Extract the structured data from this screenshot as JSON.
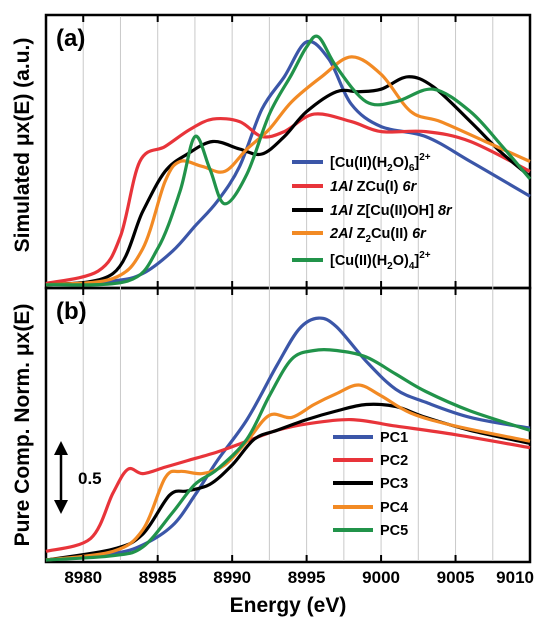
{
  "chart_data": [
    {
      "panel": "(a)",
      "type": "line",
      "ylabel": "Simulated μx(E) (a.u.)",
      "xlim": [
        8977.5,
        9010
      ],
      "ylim": [
        0,
        1.08
      ],
      "grid": "vertical",
      "legend_position": "right",
      "series": [
        {
          "name": "[Cu(II)(H2O)6]2+",
          "color": "#3b56a8",
          "x": [
            8977.5,
            8982,
            8984,
            8986,
            8987.5,
            8989,
            8990.5,
            8992,
            8993.5,
            8995,
            8996.5,
            8998,
            9000,
            9003,
            9006,
            9010
          ],
          "y": [
            0.005,
            0.02,
            0.05,
            0.14,
            0.24,
            0.34,
            0.48,
            0.71,
            0.84,
            0.98,
            0.91,
            0.73,
            0.64,
            0.6,
            0.5,
            0.36
          ]
        },
        {
          "name": "1Al ZCu(I) 6r",
          "color": "#e8343a",
          "x": [
            8977.5,
            8981,
            8982.5,
            8983.8,
            8985.5,
            8987.2,
            8988.7,
            8990.5,
            8992,
            8993.5,
            8995.5,
            8998,
            9000,
            9003,
            9006,
            9010
          ],
          "y": [
            0.01,
            0.06,
            0.2,
            0.5,
            0.56,
            0.63,
            0.67,
            0.66,
            0.6,
            0.62,
            0.69,
            0.66,
            0.62,
            0.62,
            0.58,
            0.46
          ]
        },
        {
          "name": "1Al Z[Cu(II)OH] 8r",
          "color": "#000000",
          "x": [
            8977.5,
            8982,
            8984,
            8985.5,
            8987,
            8988.7,
            8990.5,
            8992,
            8993.5,
            8995,
            8997,
            8998.5,
            9000,
            9001.8,
            9003.5,
            9006,
            9008,
            9010
          ],
          "y": [
            0.005,
            0.05,
            0.3,
            0.46,
            0.53,
            0.58,
            0.55,
            0.53,
            0.6,
            0.7,
            0.78,
            0.78,
            0.79,
            0.84,
            0.8,
            0.66,
            0.54,
            0.44
          ]
        },
        {
          "name": "2Al Z2Cu(II) 6r",
          "color": "#f28a24",
          "x": [
            8977.5,
            8982,
            8984,
            8985.5,
            8986.5,
            8988,
            8989.5,
            8991,
            8992.5,
            8994,
            8996,
            8998,
            9000,
            9002,
            9004,
            9007,
            9010
          ],
          "y": [
            0.005,
            0.03,
            0.15,
            0.42,
            0.5,
            0.48,
            0.46,
            0.55,
            0.63,
            0.74,
            0.84,
            0.92,
            0.85,
            0.7,
            0.66,
            0.58,
            0.5
          ]
        },
        {
          "name": "[Cu(II)(H2O)4]2+",
          "color": "#21934a",
          "x": [
            8977.5,
            8983,
            8985,
            8986.5,
            8987.5,
            8988.5,
            8989.5,
            8991,
            8992.5,
            8994,
            8995,
            8995.8,
            8997,
            8999,
            9001,
            9003.5,
            9006,
            9008,
            9010
          ],
          "y": [
            0.005,
            0.02,
            0.15,
            0.38,
            0.6,
            0.47,
            0.33,
            0.45,
            0.69,
            0.85,
            0.96,
            1.0,
            0.88,
            0.74,
            0.74,
            0.79,
            0.7,
            0.57,
            0.43
          ]
        }
      ]
    },
    {
      "panel": "(b)",
      "type": "line",
      "ylabel": "Pure Comp. Norm. μx(E)",
      "xlabel": "Energy (eV)",
      "xlim": [
        8977.5,
        9010
      ],
      "x_ticks": [
        8980,
        8985,
        8990,
        8995,
        9000,
        9005,
        9010
      ],
      "ylim": [
        0,
        1.25
      ],
      "scale_bar": 0.5,
      "grid": "vertical",
      "legend_position": "bottom-right",
      "series": [
        {
          "name": "PC1",
          "color": "#3b56a8",
          "x": [
            8977.5,
            8982,
            8984,
            8986,
            8987.5,
            8989,
            8991,
            8993,
            8994.5,
            8995.8,
            8997,
            8999,
            9001,
            9003,
            9006,
            9010
          ],
          "y": [
            0.0,
            0.03,
            0.07,
            0.16,
            0.3,
            0.46,
            0.65,
            0.9,
            1.07,
            1.12,
            1.08,
            0.92,
            0.79,
            0.73,
            0.66,
            0.61
          ]
        },
        {
          "name": "PC2",
          "color": "#e8343a",
          "x": [
            8977.5,
            8980.5,
            8982,
            8983,
            8984,
            8985.5,
            8987,
            8989,
            8991,
            8993,
            8995,
            8998,
            9001,
            9005,
            9010
          ],
          "y": [
            0.04,
            0.1,
            0.31,
            0.42,
            0.4,
            0.43,
            0.46,
            0.5,
            0.55,
            0.6,
            0.63,
            0.65,
            0.62,
            0.58,
            0.52
          ]
        },
        {
          "name": "PC3",
          "color": "#000000",
          "x": [
            8977.5,
            8982,
            8984,
            8985.8,
            8987,
            8988.5,
            8990,
            8991.5,
            8993,
            8995,
            8997,
            8999,
            9001,
            9003,
            9006,
            9010
          ],
          "y": [
            0.0,
            0.05,
            0.12,
            0.3,
            0.32,
            0.35,
            0.44,
            0.56,
            0.6,
            0.65,
            0.69,
            0.72,
            0.71,
            0.66,
            0.6,
            0.54
          ]
        },
        {
          "name": "PC4",
          "color": "#f28a24",
          "x": [
            8977.5,
            8982,
            8984,
            8985.5,
            8986.5,
            8988,
            8989.5,
            8991,
            8992.5,
            8994,
            8995.5,
            8997,
            8998.5,
            9000,
            9002,
            9005,
            9010
          ],
          "y": [
            0.0,
            0.04,
            0.14,
            0.38,
            0.41,
            0.4,
            0.44,
            0.55,
            0.67,
            0.66,
            0.72,
            0.77,
            0.81,
            0.76,
            0.68,
            0.62,
            0.55
          ]
        },
        {
          "name": "PC5",
          "color": "#21934a",
          "x": [
            8977.5,
            8982,
            8984,
            8986,
            8987.5,
            8989,
            8991,
            8992.5,
            8994,
            8995.5,
            8997,
            8999,
            9001,
            9003,
            9006,
            9010
          ],
          "y": [
            0.0,
            0.02,
            0.06,
            0.22,
            0.35,
            0.42,
            0.56,
            0.76,
            0.93,
            0.97,
            0.97,
            0.94,
            0.86,
            0.78,
            0.69,
            0.6
          ]
        }
      ]
    }
  ],
  "legend_a": [
    {
      "parts": [
        {
          "t": "[Cu(II)(H"
        },
        {
          "t": "2",
          "sub": true
        },
        {
          "t": "O)"
        },
        {
          "t": "6",
          "sub": true
        },
        {
          "t": "]"
        },
        {
          "t": "2+",
          "sup": true
        }
      ]
    },
    {
      "parts": [
        {
          "t": "1Al",
          "i": true
        },
        {
          "t": " ZCu(I) "
        },
        {
          "t": "6r",
          "i": true
        }
      ]
    },
    {
      "parts": [
        {
          "t": "1Al",
          "i": true
        },
        {
          "t": " Z[Cu(II)OH] "
        },
        {
          "t": "8r",
          "i": true
        }
      ]
    },
    {
      "parts": [
        {
          "t": "2Al",
          "i": true
        },
        {
          "t": " Z"
        },
        {
          "t": "2",
          "sub": true
        },
        {
          "t": "Cu(II) "
        },
        {
          "t": "6r",
          "i": true
        }
      ]
    },
    {
      "parts": [
        {
          "t": "[Cu(II)(H"
        },
        {
          "t": "2",
          "sub": true
        },
        {
          "t": "O)"
        },
        {
          "t": "4",
          "sub": true
        },
        {
          "t": "]"
        },
        {
          "t": "2+",
          "sup": true
        }
      ]
    }
  ],
  "scale_bar_label": "0.5"
}
